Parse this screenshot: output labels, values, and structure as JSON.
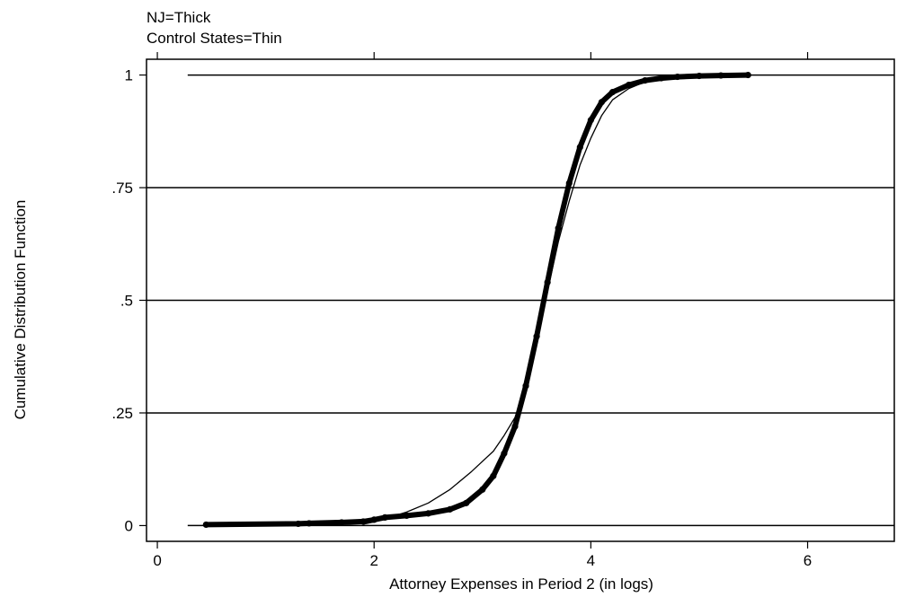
{
  "chart_data": {
    "type": "line",
    "notes": [
      "NJ=Thick",
      "Control States=Thin"
    ],
    "xlabel": "Attorney Expenses in Period 2 (in logs)",
    "ylabel": "Cumulative Distribution Function",
    "xlim": [
      -0.1,
      6.8
    ],
    "ylim": [
      -0.035,
      1.035
    ],
    "x_ticks": [
      {
        "value": 0,
        "label": "0"
      },
      {
        "value": 2,
        "label": "2"
      },
      {
        "value": 4,
        "label": "4"
      },
      {
        "value": 6,
        "label": "6"
      }
    ],
    "y_ticks": [
      {
        "value": 0,
        "label": "0"
      },
      {
        "value": 0.25,
        "label": ".25"
      },
      {
        "value": 0.5,
        "label": ".5"
      },
      {
        "value": 0.75,
        "label": ".75"
      },
      {
        "value": 1,
        "label": "1"
      }
    ],
    "grid": "horizontal reference lines at .25, .5, .75",
    "reference_lines": [
      {
        "orientation": "horizontal",
        "y": 0,
        "x_range": [
          0.28,
          6.8
        ]
      },
      {
        "orientation": "horizontal",
        "y": 1,
        "x_range": [
          0.28,
          6.8
        ]
      }
    ],
    "series": [
      {
        "name": "NJ",
        "style": "thick",
        "color": "#000000",
        "x": [
          0.45,
          1.3,
          1.4,
          1.7,
          1.9,
          2.0,
          2.1,
          2.3,
          2.5,
          2.7,
          2.85,
          3.0,
          3.1,
          3.2,
          3.3,
          3.4,
          3.5,
          3.6,
          3.7,
          3.8,
          3.9,
          4.0,
          4.1,
          4.2,
          4.35,
          4.5,
          4.65,
          4.8,
          5.0,
          5.2,
          5.45
        ],
        "y": [
          0.002,
          0.004,
          0.005,
          0.007,
          0.009,
          0.013,
          0.018,
          0.022,
          0.027,
          0.036,
          0.05,
          0.08,
          0.11,
          0.16,
          0.22,
          0.31,
          0.42,
          0.54,
          0.66,
          0.76,
          0.84,
          0.9,
          0.94,
          0.962,
          0.978,
          0.988,
          0.993,
          0.996,
          0.998,
          0.999,
          1.0
        ]
      },
      {
        "name": "Control States",
        "style": "thin",
        "color": "#000000",
        "x": [
          1.9,
          2.0,
          2.1,
          2.3,
          2.5,
          2.7,
          2.9,
          3.1,
          3.2,
          3.3,
          3.4,
          3.5,
          3.6,
          3.7,
          3.8,
          3.9,
          4.0,
          4.1,
          4.2,
          4.35,
          4.5,
          4.65,
          4.8,
          5.0
        ],
        "y": [
          0.003,
          0.008,
          0.015,
          0.03,
          0.05,
          0.08,
          0.12,
          0.165,
          0.2,
          0.24,
          0.31,
          0.41,
          0.52,
          0.63,
          0.72,
          0.8,
          0.86,
          0.91,
          0.945,
          0.97,
          0.985,
          0.993,
          0.997,
          1.0
        ]
      }
    ]
  }
}
